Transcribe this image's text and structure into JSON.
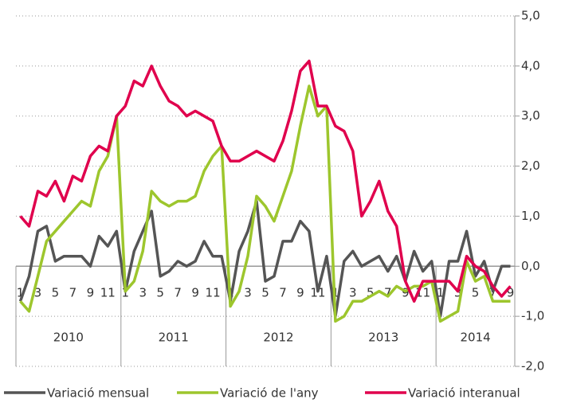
{
  "chart_data": {
    "type": "line",
    "categories": [
      "1",
      null,
      "3",
      null,
      "5",
      null,
      "7",
      null,
      "9",
      null,
      "11",
      null,
      "1",
      null,
      "3",
      null,
      "5",
      null,
      "7",
      null,
      "9",
      null,
      "11",
      null,
      "1",
      null,
      "3",
      null,
      "5",
      null,
      "7",
      null,
      "9",
      null,
      "11",
      null,
      "1",
      null,
      "3",
      null,
      "5",
      null,
      "7",
      null,
      "9",
      null,
      "11",
      null,
      "1",
      null,
      "3",
      null,
      "5",
      null,
      "7",
      null,
      "9"
    ],
    "years": [
      "2010",
      "2011",
      "2012",
      "2013",
      "2014"
    ],
    "series": [
      {
        "name": "Variació mensual",
        "color": "#555555",
        "values": [
          -0.7,
          -0.2,
          0.7,
          0.8,
          0.1,
          0.2,
          0.2,
          0.2,
          0.0,
          0.6,
          0.4,
          0.7,
          -0.5,
          0.3,
          0.7,
          1.1,
          -0.2,
          -0.1,
          0.1,
          0.0,
          0.1,
          0.5,
          0.2,
          0.2,
          -0.7,
          0.3,
          0.7,
          1.3,
          -0.3,
          -0.2,
          0.5,
          0.5,
          0.9,
          0.7,
          -0.5,
          0.2,
          -1.0,
          0.1,
          0.3,
          0.0,
          0.1,
          0.2,
          -0.1,
          0.2,
          -0.3,
          0.3,
          -0.1,
          0.1,
          -1.0,
          0.1,
          0.1,
          0.7,
          -0.2,
          0.1,
          -0.5,
          0.0,
          0.0
        ]
      },
      {
        "name": "Variació de l'any",
        "color": "#9dc62d",
        "values": [
          -0.7,
          -0.9,
          -0.2,
          0.5,
          0.7,
          0.9,
          1.1,
          1.3,
          1.2,
          1.9,
          2.2,
          3.0,
          -0.5,
          -0.3,
          0.3,
          1.5,
          1.3,
          1.2,
          1.3,
          1.3,
          1.4,
          1.9,
          2.2,
          2.4,
          -0.8,
          -0.5,
          0.2,
          1.4,
          1.2,
          0.9,
          1.4,
          1.9,
          2.8,
          3.6,
          3.0,
          3.2,
          -1.1,
          -1.0,
          -0.7,
          -0.7,
          -0.6,
          -0.5,
          -0.6,
          -0.4,
          -0.5,
          -0.4,
          -0.4,
          -0.3,
          -1.1,
          -1.0,
          -0.9,
          0.1,
          -0.3,
          -0.2,
          -0.7,
          -0.7,
          -0.7
        ]
      },
      {
        "name": "Variació interanual",
        "color": "#e0004d",
        "values": [
          1.0,
          0.8,
          1.5,
          1.4,
          1.7,
          1.3,
          1.8,
          1.7,
          2.2,
          2.4,
          2.3,
          3.0,
          3.2,
          3.7,
          3.6,
          4.0,
          3.6,
          3.3,
          3.2,
          3.0,
          3.1,
          3.0,
          2.9,
          2.4,
          2.1,
          2.1,
          2.2,
          2.3,
          2.2,
          2.1,
          2.5,
          3.1,
          3.9,
          4.1,
          3.2,
          3.2,
          2.8,
          2.7,
          2.3,
          1.0,
          1.3,
          1.7,
          1.1,
          0.8,
          -0.3,
          -0.7,
          -0.3,
          -0.3,
          -0.3,
          -0.3,
          -0.5,
          0.2,
          0.0,
          -0.1,
          -0.4,
          -0.6,
          -0.4
        ]
      }
    ],
    "ylim": [
      -2,
      5
    ],
    "yticks": [
      {
        "value": -2,
        "label": "-2,0"
      },
      {
        "value": -1,
        "label": "-1,0"
      },
      {
        "value": 0,
        "label": "0,0"
      },
      {
        "value": 1,
        "label": "1,0"
      },
      {
        "value": 2,
        "label": "2,0"
      },
      {
        "value": 3,
        "label": "3,0"
      },
      {
        "value": 4,
        "label": "4,0"
      },
      {
        "value": 5,
        "label": "5,0"
      }
    ],
    "grid": true,
    "legend": "bottom"
  }
}
